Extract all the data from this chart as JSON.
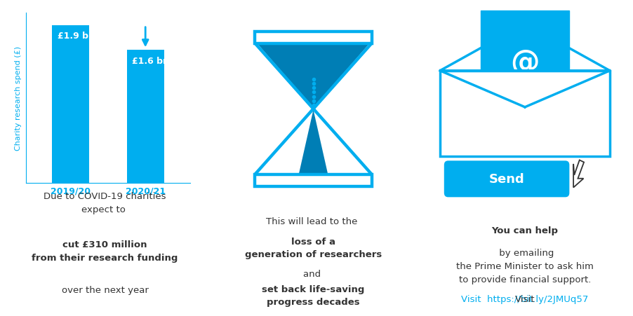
{
  "bar_values": [
    1.9,
    1.6
  ],
  "bar_labels": [
    "£1.9 bn",
    "£1.6 bn"
  ],
  "bar_categories": [
    "2019/20",
    "2020/21"
  ],
  "bar_color": "#00AEEF",
  "dark_blue": "#007EB5",
  "ylabel": "Charity research spend (£)",
  "text1_line1": "Due to COVID-19 charities",
  "text1_line2": "expect to ",
  "text1_bold": "cut £310 million\nfrom their research funding",
  "text1_end": "over the next year",
  "text2_line1": "This will lead to the ",
  "text2_bold1": "loss of a\ngeneration of researchers",
  "text2_mid": "and ",
  "text2_bold2": "set back life-saving\nprogress decades",
  "text3_bold": "You can help",
  "text3_normal": " by emailing\nthe Prime Minister to ask him\nto provide financial support.\nVisit ",
  "text3_link": "https://bit.ly/2JMUq57",
  "send_label": "Send",
  "blue": "#00AEEF",
  "white": "#FFFFFF",
  "black": "#333333",
  "background": "#FFFFFF",
  "ylabel_color": "#00AEEF",
  "axis_color": "#00AEEF",
  "tick_color": "#00AEEF"
}
